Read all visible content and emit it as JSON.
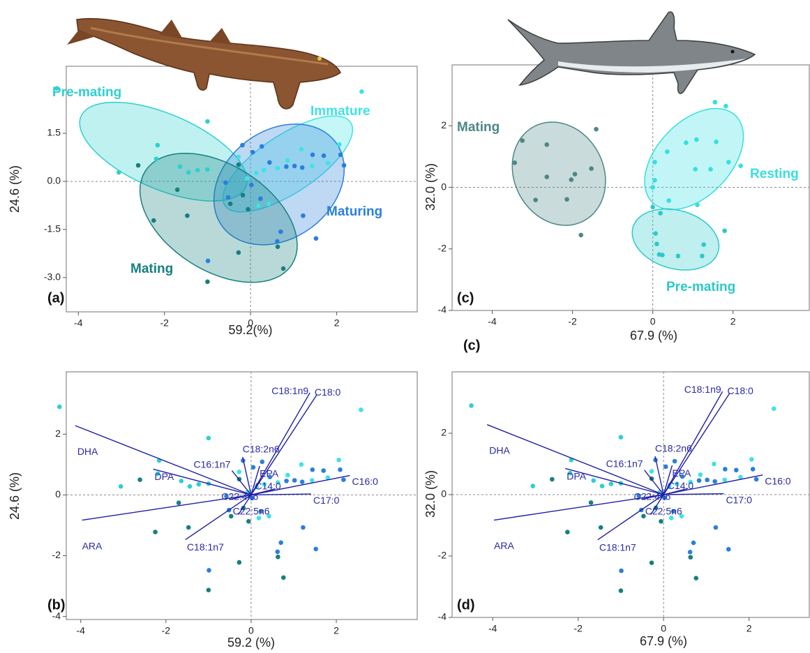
{
  "chart_data": [
    {
      "type": "scatter",
      "panel_label": "(a)",
      "xlabel": "59.2(%)",
      "ylabel": "24.6 (%)",
      "xlim": [
        -4.28,
        3.87
      ],
      "ylim": [
        -4.07,
        3.59
      ],
      "xticks": [
        -4,
        -2,
        0,
        2
      ],
      "yticks": [
        1.5,
        {
          "value": 0,
          "label": "0.0"
        },
        -1.5,
        {
          "value": -3,
          "label": "-3.0"
        }
      ],
      "series": [
        {
          "name": "Pre-mating",
          "color": "#2fcfcf",
          "x": [
            -4.5,
            -3.06,
            -2.19,
            -1.64,
            -1.44,
            -1.23,
            -1.0,
            -1.0,
            -2.16
          ],
          "y": [
            2.9,
            0.28,
            0.7,
            0.46,
            0.28,
            0.35,
            0.37,
            1.87,
            1.13
          ]
        },
        {
          "name": "Immature",
          "color": "#3ee3e6",
          "x": [
            2.58,
            0.31,
            0.63,
            0.86,
            1.18,
            1.43,
            2.06,
            1.8,
            0.13,
            0.18,
            -0.08,
            0.42,
            -0.28
          ],
          "y": [
            2.8,
            0.35,
            0.41,
            0.65,
            1.0,
            0.48,
            1.15,
            0.57,
            0.26,
            -0.76,
            0.09,
            -0.7,
            0.76
          ]
        },
        {
          "name": "Maturing",
          "color": "#2a7fdc",
          "x": [
            -0.19,
            0.05,
            0.26,
            0.44,
            0.83,
            1.02,
            1.2,
            1.44,
            1.7,
            2.17,
            2.09,
            0.02,
            0.23,
            1.22,
            0.7,
            0.62,
            1.52,
            -0.58,
            -0.52,
            -0.99
          ],
          "y": [
            1.13,
            0.91,
            1.09,
            0.59,
            0.46,
            0.48,
            0.43,
            0.83,
            0.8,
            0.5,
            0.83,
            -0.11,
            -0.54,
            -1.07,
            -1.57,
            -1.87,
            -1.78,
            -0.04,
            -0.5,
            -2.48
          ]
        },
        {
          "name": "Mating",
          "color": "#17807f",
          "x": [
            -2.61,
            -1.7,
            -1.47,
            -2.25,
            -0.28,
            -0.47,
            -0.18,
            -0.28,
            0.63,
            0.76,
            -1.0,
            -0.06
          ],
          "y": [
            0.5,
            -0.26,
            -1.07,
            -1.22,
            0.52,
            -0.7,
            -0.43,
            -2.22,
            -2.04,
            -2.72,
            -3.13,
            -0.87
          ]
        }
      ]
    },
    {
      "type": "biplot",
      "panel_label": "(b)",
      "xlabel": "59.2 (%)",
      "ylabel": "24.6 (%)",
      "xlim": [
        -4.34,
        3.9
      ],
      "ylim": [
        -4.1,
        4.05
      ],
      "xticks": [
        -4,
        -2,
        0,
        2
      ],
      "yticks": [
        -4,
        -2,
        0,
        2
      ],
      "series": [
        {
          "color": "#2fcfcf",
          "x": [
            -4.5,
            -3.06,
            -2.19,
            -1.64,
            -1.44,
            -1.23,
            -1.0,
            -1.0,
            -2.16
          ],
          "y": [
            2.9,
            0.28,
            0.7,
            0.46,
            0.28,
            0.35,
            0.37,
            1.87,
            1.13
          ]
        },
        {
          "color": "#3ee3e6",
          "x": [
            2.58,
            0.31,
            0.63,
            0.86,
            1.18,
            1.43,
            2.06,
            1.8,
            0.13,
            0.18,
            -0.08,
            0.42,
            -0.28
          ],
          "y": [
            2.8,
            0.35,
            0.41,
            0.65,
            1.0,
            0.48,
            1.15,
            0.57,
            0.26,
            -0.76,
            0.09,
            -0.7,
            0.76
          ]
        },
        {
          "color": "#2a7fdc",
          "x": [
            -0.19,
            0.05,
            0.26,
            0.44,
            0.83,
            1.02,
            1.2,
            1.44,
            1.7,
            2.17,
            2.09,
            0.02,
            0.23,
            1.22,
            0.7,
            0.62,
            1.52,
            -0.58,
            -0.52,
            -0.99
          ],
          "y": [
            1.13,
            0.91,
            1.09,
            0.59,
            0.46,
            0.48,
            0.43,
            0.83,
            0.8,
            0.5,
            0.83,
            -0.11,
            -0.54,
            -1.07,
            -1.57,
            -1.87,
            -1.78,
            -0.04,
            -0.5,
            -2.48
          ]
        },
        {
          "color": "#17807f",
          "x": [
            -2.61,
            -1.7,
            -1.47,
            -2.25,
            -0.28,
            -0.47,
            -0.18,
            -0.28,
            0.63,
            0.76,
            -1.0,
            -0.06
          ],
          "y": [
            0.5,
            -0.26,
            -1.07,
            -1.22,
            0.52,
            -0.7,
            -0.43,
            -2.22,
            -2.04,
            -2.72,
            -3.13,
            -0.87
          ]
        }
      ],
      "loadings": [
        {
          "name": "DHA",
          "x": -4.13,
          "y": 2.28
        },
        {
          "name": "ARA",
          "x": -3.97,
          "y": -0.83
        },
        {
          "name": "DPA",
          "x": -2.3,
          "y": 0.85
        },
        {
          "name": "C16:1n7",
          "x": -0.45,
          "y": 0.8
        },
        {
          "name": "C18:2n6",
          "x": -0.2,
          "y": 1.25
        },
        {
          "name": "EPA",
          "x": 0.2,
          "y": 0.95
        },
        {
          "name": "C18:1n9",
          "x": 1.38,
          "y": 3.36
        },
        {
          "name": "C18:0",
          "x": 1.54,
          "y": 3.29
        },
        {
          "name": "C16:0",
          "x": 2.32,
          "y": 0.64
        },
        {
          "name": "C14:0",
          "x": 0.57,
          "y": 0.2
        },
        {
          "name": "C17:0",
          "x": 1.41,
          "y": 0.03
        },
        {
          "name": "C22:4n6",
          "x": -0.5,
          "y": -0.15
        },
        {
          "name": "C22:5n6",
          "x": -0.3,
          "y": -0.65
        },
        {
          "name": "C18:1n7",
          "x": -1.54,
          "y": -1.47
        }
      ]
    },
    {
      "type": "scatter",
      "panel_label": "(c)",
      "note": "(c)",
      "xlabel": "67.9 (%)",
      "ylabel": "32.0 (%)",
      "xlim": [
        -5,
        3.9
      ],
      "ylim": [
        -4,
        3.98
      ],
      "xticks": [
        -4,
        -2,
        0,
        2
      ],
      "yticks": [
        -4,
        -2,
        0,
        2
      ],
      "series": [
        {
          "name": "Mating",
          "color": "#4b8787",
          "x": [
            -3.25,
            -3.44,
            -2.64,
            -2.64,
            -1.53,
            -1.94,
            -2.03,
            -2.92,
            -2.14,
            -1.41,
            -1.79
          ],
          "y": [
            1.52,
            0.8,
            1.39,
            0.34,
            0.61,
            0.43,
            0.25,
            -0.41,
            -0.39,
            1.89,
            -1.55
          ]
        },
        {
          "name": "Resting",
          "color": "#36dfe0",
          "x": [
            1.55,
            1.82,
            0.83,
            1.09,
            1.58,
            0.36,
            1.06,
            1.44,
            1.89,
            2.19,
            0.05,
            0.05,
            0.0,
            0.4,
            1.11
          ],
          "y": [
            2.77,
            2.64,
            1.45,
            1.55,
            1.48,
            1.16,
            0.59,
            0.59,
            0.82,
            0.7,
            0.82,
            0.23,
            0.0,
            -0.43,
            -0.57
          ]
        },
        {
          "name": "Pre-mating",
          "color": "#2cc9c9",
          "x": [
            0.19,
            0.07,
            0.1,
            0.16,
            0.24,
            0.63,
            1.27,
            1.23,
            1.79,
            0.0
          ],
          "y": [
            -0.84,
            -1.5,
            -1.84,
            -2.18,
            -2.2,
            -2.23,
            -1.86,
            -2.23,
            -1.41,
            -0.64
          ]
        }
      ]
    },
    {
      "type": "biplot",
      "panel_label": "(d)",
      "xlabel": "67.9 (%)",
      "ylabel": "32.0 (%)",
      "xlim": [
        -4.95,
        3.41
      ],
      "ylim": [
        -4,
        4
      ],
      "xticks": [
        -4,
        -2,
        0,
        2
      ],
      "yticks": [
        -4,
        -2,
        0,
        2
      ],
      "series": [
        {
          "color": "#2fcfcf",
          "x": [
            -4.5,
            -3.06,
            -2.19,
            -1.64,
            -1.44,
            -1.23,
            -1.0,
            -1.0,
            -2.16
          ],
          "y": [
            2.9,
            0.28,
            0.7,
            0.46,
            0.28,
            0.35,
            0.37,
            1.87,
            1.13
          ]
        },
        {
          "color": "#3ee3e6",
          "x": [
            2.58,
            0.31,
            0.63,
            0.86,
            1.18,
            1.43,
            2.06,
            1.8,
            0.13,
            0.18,
            -0.08,
            0.42,
            -0.28
          ],
          "y": [
            2.8,
            0.35,
            0.41,
            0.65,
            1.0,
            0.48,
            1.15,
            0.57,
            0.26,
            -0.76,
            0.09,
            -0.7,
            0.76
          ]
        },
        {
          "color": "#2a7fdc",
          "x": [
            -0.19,
            0.05,
            0.26,
            0.44,
            0.83,
            1.02,
            1.2,
            1.44,
            1.7,
            2.17,
            2.09,
            0.02,
            0.23,
            1.22,
            0.7,
            0.62,
            1.52,
            -0.58,
            -0.52,
            -0.99
          ],
          "y": [
            1.13,
            0.91,
            1.09,
            0.59,
            0.46,
            0.48,
            0.43,
            0.83,
            0.8,
            0.5,
            0.83,
            -0.11,
            -0.54,
            -1.07,
            -1.57,
            -1.87,
            -1.78,
            -0.04,
            -0.5,
            -2.48
          ]
        },
        {
          "color": "#17807f",
          "x": [
            -2.61,
            -1.7,
            -1.47,
            -2.25,
            -0.28,
            -0.47,
            -0.18,
            -0.28,
            0.63,
            0.76,
            -1.0,
            -0.06
          ],
          "y": [
            0.5,
            -0.26,
            -1.07,
            -1.22,
            0.52,
            -0.7,
            -0.43,
            -2.22,
            -2.04,
            -2.72,
            -3.13,
            -0.87
          ]
        }
      ],
      "loadings": [
        {
          "name": "DHA",
          "x": -4.13,
          "y": 2.28
        },
        {
          "name": "ARA",
          "x": -3.97,
          "y": -0.83
        },
        {
          "name": "DPA",
          "x": -2.3,
          "y": 0.85
        },
        {
          "name": "C16:1n7",
          "x": -0.45,
          "y": 0.8
        },
        {
          "name": "C18:2n6",
          "x": -0.2,
          "y": 1.25
        },
        {
          "name": "EPA",
          "x": 0.2,
          "y": 0.95
        },
        {
          "name": "C18:1n9",
          "x": 1.38,
          "y": 3.36
        },
        {
          "name": "C18:0",
          "x": 1.54,
          "y": 3.29
        },
        {
          "name": "C16:0",
          "x": 2.32,
          "y": 0.64
        },
        {
          "name": "C14:0",
          "x": 0.57,
          "y": 0.2
        },
        {
          "name": "C17:0",
          "x": 1.41,
          "y": 0.03
        },
        {
          "name": "C22:4n6",
          "x": -0.5,
          "y": -0.15
        },
        {
          "name": "C22:5n6",
          "x": -0.3,
          "y": -0.65
        },
        {
          "name": "C18:1n7",
          "x": -1.54,
          "y": -1.47
        }
      ]
    }
  ]
}
